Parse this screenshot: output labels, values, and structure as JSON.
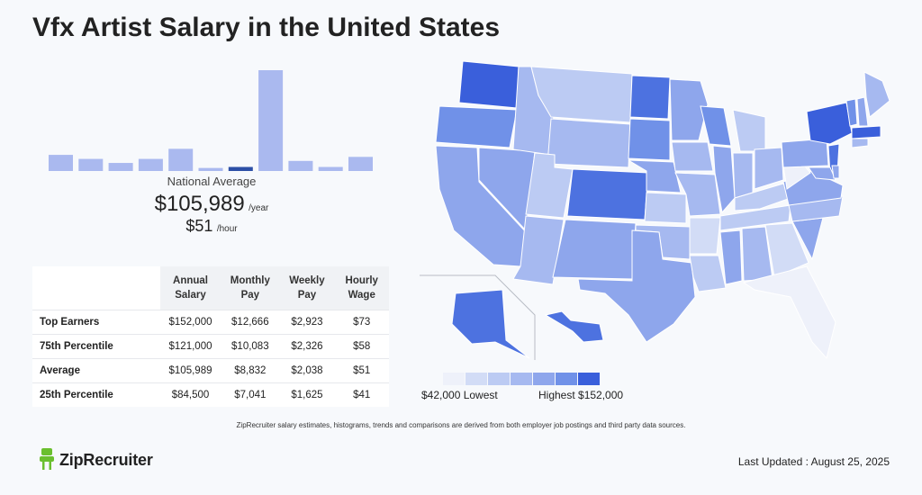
{
  "title": "Vfx Artist Salary in the United States",
  "summary": {
    "national_average_label": "National Average",
    "yearly_amount": "$105,989",
    "yearly_unit": "/year",
    "hourly_amount": "$51",
    "hourly_unit": "/hour"
  },
  "chart_data": [
    {
      "type": "bar",
      "title": "",
      "xlabel": "",
      "ylabel": "",
      "values": [
        0.16,
        0.12,
        0.08,
        0.12,
        0.22,
        0.03,
        0.04,
        1.0,
        0.1,
        0.04,
        0.14
      ],
      "highlight_index": 6,
      "colors": {
        "bar": "#aab9ef",
        "highlight": "#2c4fa6"
      }
    },
    {
      "type": "table",
      "columns": [
        "",
        "Annual Salary",
        "Monthly Pay",
        "Weekly Pay",
        "Hourly Wage"
      ],
      "rows": [
        {
          "label": "Top Earners",
          "values": [
            "$152,000",
            "$12,666",
            "$2,923",
            "$73"
          ]
        },
        {
          "label": "75th Percentile",
          "values": [
            "$121,000",
            "$10,083",
            "$2,326",
            "$58"
          ]
        },
        {
          "label": "Average",
          "values": [
            "$105,989",
            "$8,832",
            "$2,038",
            "$51"
          ]
        },
        {
          "label": "25th Percentile",
          "values": [
            "$84,500",
            "$7,041",
            "$1,625",
            "$41"
          ]
        }
      ]
    },
    {
      "type": "heatmap",
      "title": "",
      "legend": {
        "low_label": "$42,000 Lowest",
        "high_label": "Highest $152,000"
      },
      "scale_colors": [
        "#eef1fa",
        "#d2dcf6",
        "#bccbf3",
        "#a6b9f0",
        "#8ea6ec",
        "#7091e8",
        "#4d72e0",
        "#3a5fdb"
      ],
      "state_levels": {
        "WA": 7,
        "OR": 5,
        "CA": 4,
        "NV": 4,
        "ID": 3,
        "MT": 2,
        "WY": 3,
        "UT": 2,
        "AZ": 3,
        "CO": 6,
        "NM": 4,
        "ND": 6,
        "SD": 5,
        "NE": 4,
        "KS": 2,
        "OK": 3,
        "TX": 4,
        "MN": 4,
        "IA": 3,
        "MO": 3,
        "AR": 1,
        "LA": 2,
        "WI": 5,
        "IL": 4,
        "MI": 2,
        "IN": 3,
        "OH": 3,
        "KY": 2,
        "TN": 2,
        "MS": 4,
        "AL": 3,
        "GA": 1,
        "FL": 0,
        "SC": 4,
        "NC": 3,
        "VA": 4,
        "WV": 0,
        "PA": 4,
        "NY": 7,
        "ME": 3,
        "NJ": 6,
        "AK": 6,
        "HI": 6,
        "MA": 7,
        "VT": 5,
        "NH": 4,
        "MD": 4,
        "CT": 3,
        "DE": 4
      }
    }
  ],
  "footnote": "ZipRecruiter salary estimates, histograms, trends and comparisons are derived from both employer job postings and third party data sources.",
  "brand": {
    "name": "ZipRecruiter",
    "icon": "chair-icon",
    "accent": "#6abf2e"
  },
  "last_updated": "Last Updated : August 25, 2025"
}
